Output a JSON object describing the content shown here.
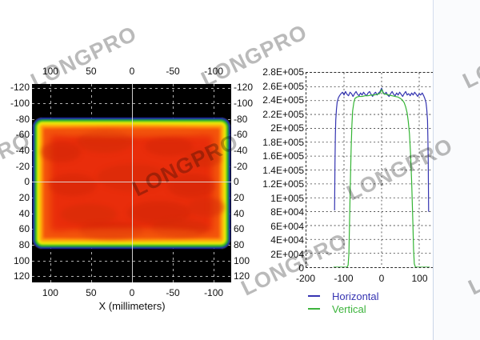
{
  "watermark": {
    "text": "LONGPRO"
  },
  "heatmap": {
    "xlabel": "X (millimeters)",
    "x_ticks": [
      100,
      50,
      0,
      -50,
      -100
    ],
    "y_ticks": [
      -120,
      -100,
      -80,
      -60,
      -40,
      -20,
      0,
      20,
      40,
      60,
      80,
      100,
      120
    ]
  },
  "profile": {
    "x_ticks": [
      -200,
      -100,
      0,
      100,
      200
    ],
    "y_tick_values": [
      0,
      20000,
      40000,
      60000,
      80000,
      100000,
      120000,
      140000,
      160000,
      180000,
      200000,
      220000,
      240000,
      260000,
      280000
    ],
    "y_tick_labels": [
      "0",
      "2E+004",
      "4E+004",
      "6E+004",
      "8E+004",
      "1E+005",
      "1.2E+005",
      "1.4E+005",
      "1.6E+005",
      "1.8E+005",
      "2E+005",
      "2.2E+005",
      "2.4E+005",
      "2.6E+005",
      "2.8E+005"
    ],
    "legend": [
      {
        "label": "Horizontal",
        "color": "#3634b2"
      },
      {
        "label": "Vertical",
        "color": "#3cb43c"
      }
    ]
  },
  "chart_data": [
    {
      "type": "heatmap",
      "title": "",
      "xlabel": "X (millimeters)",
      "ylabel": "",
      "x_axis": {
        "ticks": [
          100,
          50,
          0,
          -50,
          -100
        ],
        "range": [
          122,
          -122
        ],
        "reversed": true
      },
      "y_axis": {
        "ticks": [
          -120,
          -100,
          -80,
          -60,
          -40,
          -20,
          0,
          20,
          40,
          60,
          80,
          100,
          120
        ],
        "range": [
          -125,
          125
        ]
      },
      "background": "#000000",
      "colormap": "rainbow (blue-green-yellow-orange-red core)",
      "beam": {
        "shape": "flat-top rectangular beam",
        "x_extent_mm": [
          -122,
          122
        ],
        "y_extent_mm": [
          -80,
          80
        ],
        "core_level": 250000
      },
      "grid": "dashed at x every 50 mm, y every 20 mm, solid crosshair at 0,0"
    },
    {
      "type": "line",
      "title": "",
      "xlabel": "",
      "ylabel": "",
      "xlim": [
        -200,
        200
      ],
      "ylim": [
        0,
        280000
      ],
      "x_ticks": [
        -200,
        -100,
        0,
        100,
        200
      ],
      "grid": "dotted, horizontal every 2E+004, vertical every 100",
      "legend_position": "bottom-left",
      "series": [
        {
          "name": "Horizontal",
          "color": "#3333b0",
          "points": [
            [
              -125,
              82000
            ],
            [
              -124,
              150000
            ],
            [
              -123,
              190000
            ],
            [
              -122,
              212000
            ],
            [
              -120,
              228000
            ],
            [
              -118,
              238000
            ],
            [
              -115,
              244000
            ],
            [
              -112,
              247000
            ],
            [
              -108,
              250000
            ],
            [
              -104,
              252000
            ],
            [
              -100,
              248000
            ],
            [
              -96,
              253000
            ],
            [
              -92,
              249000
            ],
            [
              -88,
              247000
            ],
            [
              -84,
              252000
            ],
            [
              -80,
              250000
            ],
            [
              -76,
              246000
            ],
            [
              -72,
              250000
            ],
            [
              -68,
              253000
            ],
            [
              -64,
              249000
            ],
            [
              -60,
              247000
            ],
            [
              -56,
              251000
            ],
            [
              -52,
              248000
            ],
            [
              -48,
              252000
            ],
            [
              -44,
              249000
            ],
            [
              -40,
              247000
            ],
            [
              -36,
              251000
            ],
            [
              -32,
              253000
            ],
            [
              -28,
              249000
            ],
            [
              -24,
              246000
            ],
            [
              -20,
              250000
            ],
            [
              -16,
              252000
            ],
            [
              -12,
              248000
            ],
            [
              -8,
              251000
            ],
            [
              -4,
              253000
            ],
            [
              0,
              258000
            ],
            [
              4,
              252000
            ],
            [
              8,
              249000
            ],
            [
              12,
              252000
            ],
            [
              16,
              248000
            ],
            [
              20,
              246000
            ],
            [
              24,
              250000
            ],
            [
              28,
              253000
            ],
            [
              32,
              249000
            ],
            [
              36,
              247000
            ],
            [
              40,
              251000
            ],
            [
              44,
              248000
            ],
            [
              48,
              252000
            ],
            [
              52,
              249000
            ],
            [
              56,
              246000
            ],
            [
              60,
              250000
            ],
            [
              64,
              253000
            ],
            [
              68,
              248000
            ],
            [
              72,
              250000
            ],
            [
              76,
              247000
            ],
            [
              80,
              251000
            ],
            [
              84,
              248000
            ],
            [
              88,
              252000
            ],
            [
              92,
              249000
            ],
            [
              96,
              246000
            ],
            [
              100,
              250000
            ],
            [
              104,
              248000
            ],
            [
              108,
              251000
            ],
            [
              112,
              247000
            ],
            [
              115,
              243000
            ],
            [
              118,
              237000
            ],
            [
              120,
              228000
            ],
            [
              122,
              212000
            ],
            [
              123,
              190000
            ],
            [
              124,
              155000
            ],
            [
              125,
              80000
            ]
          ]
        },
        {
          "name": "Vertical",
          "color": "#33b433",
          "points": [
            [
              -128,
              0
            ],
            [
              -92,
              0
            ],
            [
              -89,
              3000
            ],
            [
              -87,
              20000
            ],
            [
              -85,
              70000
            ],
            [
              -83,
              125000
            ],
            [
              -81,
              170000
            ],
            [
              -79,
              205000
            ],
            [
              -77,
              225000
            ],
            [
              -74,
              237000
            ],
            [
              -71,
              243000
            ],
            [
              -66,
              245000
            ],
            [
              -60,
              246000
            ],
            [
              -52,
              246000
            ],
            [
              -44,
              247000
            ],
            [
              -36,
              247000
            ],
            [
              -28,
              248000
            ],
            [
              -20,
              248000
            ],
            [
              -12,
              249000
            ],
            [
              -5,
              250000
            ],
            [
              0,
              256000
            ],
            [
              5,
              250000
            ],
            [
              12,
              249000
            ],
            [
              20,
              248000
            ],
            [
              28,
              247000
            ],
            [
              36,
              246000
            ],
            [
              44,
              245000
            ],
            [
              50,
              243000
            ],
            [
              55,
              241000
            ],
            [
              60,
              237000
            ],
            [
              64,
              231000
            ],
            [
              68,
              222000
            ],
            [
              71,
              210000
            ],
            [
              74,
              192000
            ],
            [
              77,
              163000
            ],
            [
              80,
              122000
            ],
            [
              83,
              68000
            ],
            [
              85,
              25000
            ],
            [
              87,
              5000
            ],
            [
              90,
              0
            ],
            [
              128,
              0
            ]
          ]
        }
      ]
    }
  ]
}
